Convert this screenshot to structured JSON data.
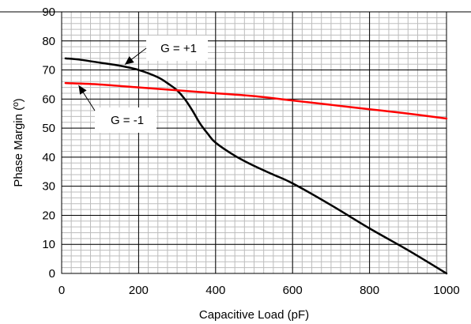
{
  "chart_data": {
    "type": "line",
    "title": "",
    "xlabel": "Capacitive Load (pF)",
    "ylabel": "Phase Margin (º)",
    "xlim": [
      0,
      1000
    ],
    "ylim": [
      0,
      90
    ],
    "xticks": [
      0,
      200,
      400,
      600,
      800,
      1000
    ],
    "yticks": [
      0,
      10,
      20,
      30,
      40,
      50,
      60,
      70,
      80,
      90
    ],
    "grid": true,
    "series": [
      {
        "name": "G = +1",
        "color": "#000000",
        "x": [
          10,
          50,
          100,
          150,
          200,
          250,
          280,
          300,
          320,
          340,
          360,
          380,
          400,
          450,
          500,
          550,
          600,
          700,
          800,
          900,
          1000
        ],
        "y": [
          74,
          73.5,
          72.5,
          71.5,
          70,
          67.5,
          65,
          63,
          60,
          56,
          51.5,
          48,
          45,
          40.5,
          37,
          34,
          31,
          23.5,
          15.5,
          8,
          0
        ]
      },
      {
        "name": "G = -1",
        "color": "#ff0000",
        "x": [
          10,
          100,
          200,
          300,
          400,
          500,
          600,
          700,
          800,
          900,
          1000
        ],
        "y": [
          65.5,
          65,
          64,
          63,
          62,
          61,
          59.5,
          58,
          56.5,
          55,
          53.3
        ]
      }
    ],
    "annotations": [
      {
        "text": "G = +1",
        "series": "G = +1",
        "x": 160,
        "y": 71.3
      },
      {
        "text": "G = -1",
        "series": "G = -1",
        "x": 40,
        "y": 65.3
      }
    ]
  }
}
